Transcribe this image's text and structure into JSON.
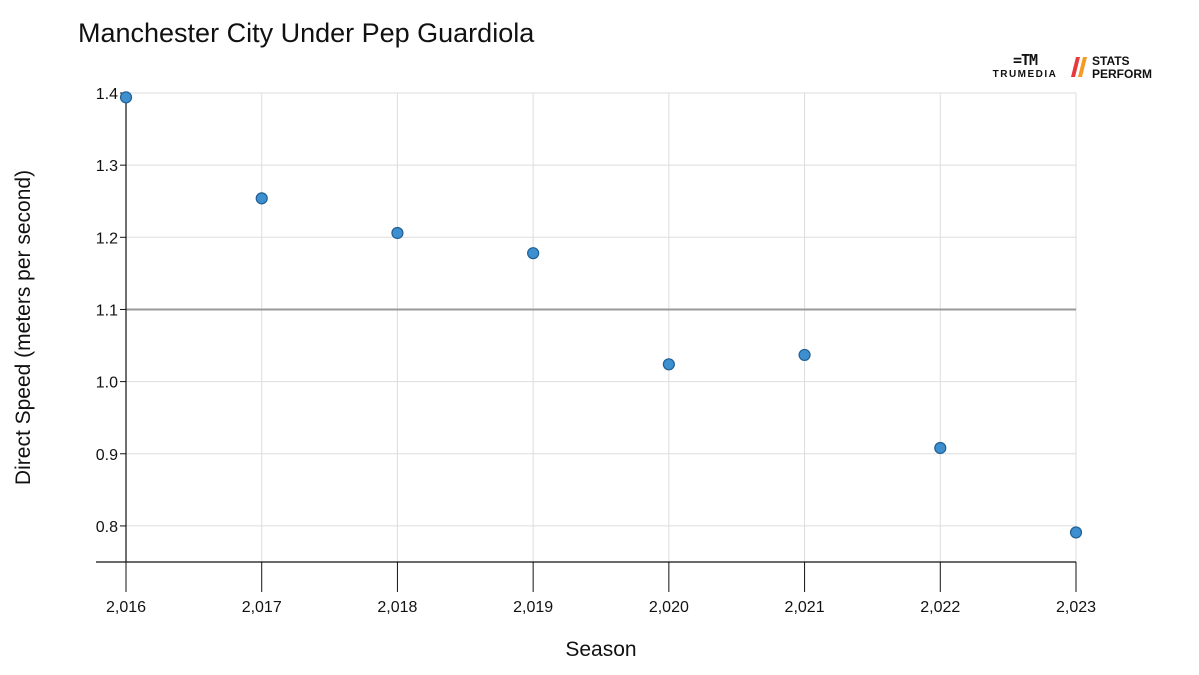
{
  "title": "Manchester City Under Pep Guardiola",
  "logos": {
    "trumedia_mark": "=TM",
    "trumedia_word": "TRUMEDIA",
    "stats_line1": "STATS",
    "stats_line2": "PERFORM",
    "stats_colors": [
      "#e8393f",
      "#f59a23"
    ]
  },
  "chart_data": {
    "type": "scatter",
    "title": "Manchester City Under Pep Guardiola",
    "xlabel": "Season",
    "ylabel": "Direct Speed (meters per second)",
    "x": [
      2016,
      2017,
      2018,
      2019,
      2020,
      2021,
      2022,
      2023
    ],
    "y": [
      1.394,
      1.254,
      1.206,
      1.178,
      1.024,
      1.037,
      0.908,
      0.791
    ],
    "x_tick_labels": [
      "2,016",
      "2,017",
      "2,018",
      "2,019",
      "2,020",
      "2,021",
      "2,022",
      "2,023"
    ],
    "y_ticks": [
      0.8,
      0.9,
      1.0,
      1.1,
      1.2,
      1.3,
      1.4
    ],
    "y_tick_labels": [
      "0.8",
      "0.9",
      "1.0",
      "1.1",
      "1.2",
      "1.3",
      "1.4"
    ],
    "xlim": [
      2016,
      2023
    ],
    "ylim": [
      0.75,
      1.4
    ],
    "reference_line_y": 1.1,
    "grid": true,
    "point_color": "#3d8fcf",
    "point_stroke": "#1f5f93",
    "reference_line_color": "#9a9a9a",
    "grid_color": "#dddddd"
  }
}
